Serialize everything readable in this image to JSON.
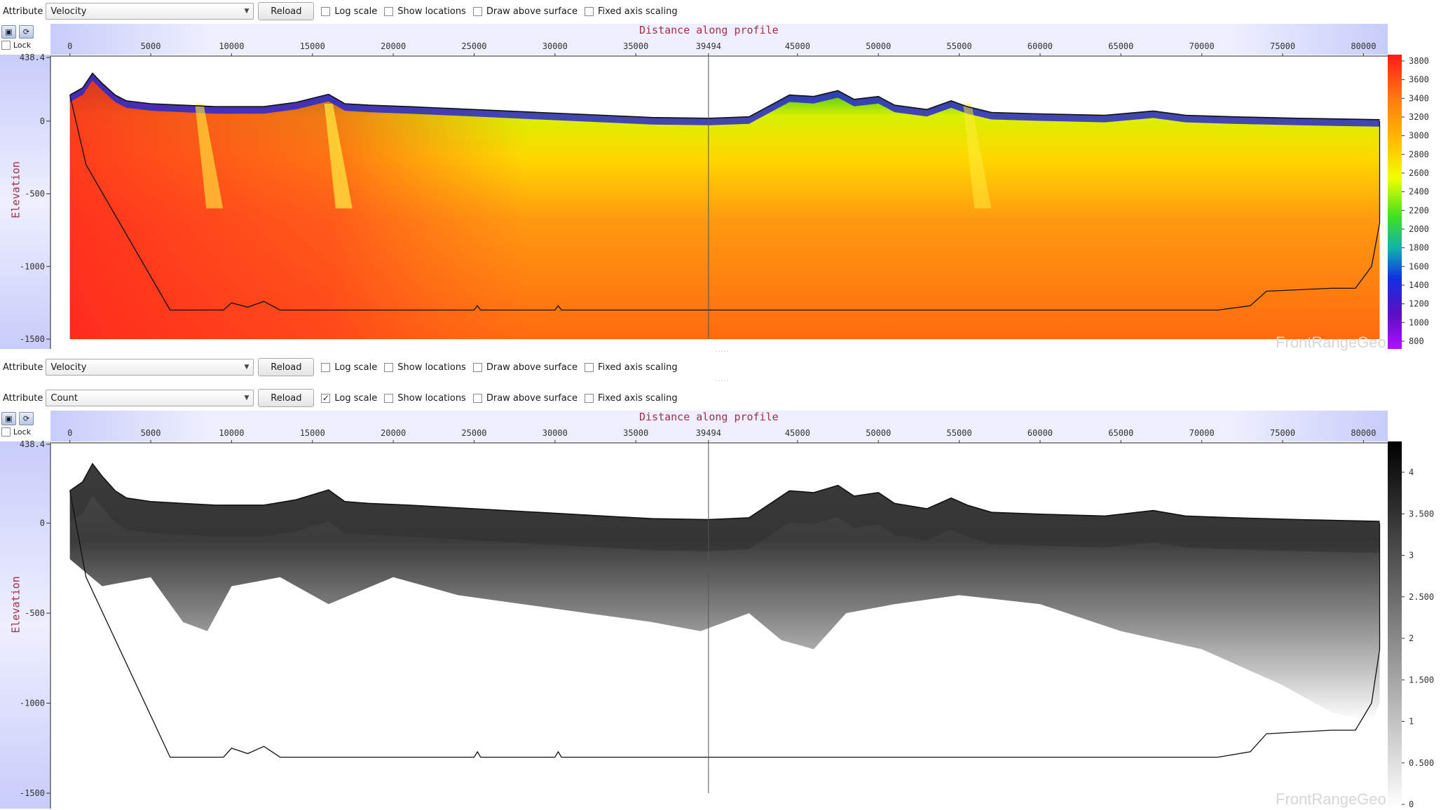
{
  "panels": [
    {
      "id": "top",
      "attribute_label": "Attribute",
      "attribute_value": "Velocity",
      "reload_label": "Reload",
      "log_scale": {
        "label": "Log scale",
        "checked": false
      },
      "show_locations": {
        "label": "Show locations",
        "checked": false
      },
      "draw_above_surface": {
        "label": "Draw above surface",
        "checked": false
      },
      "fixed_axis_scaling": {
        "label": "Fixed axis scaling",
        "checked": false
      },
      "lock_label": "Lock",
      "x_axis_title": "Distance along profile",
      "y_axis_title": "Elevation",
      "x_ticks": [
        "0",
        "5000",
        "10000",
        "15000",
        "20000",
        "25000",
        "30000",
        "35000",
        "39494",
        "45000",
        "50000",
        "55000",
        "60000",
        "65000",
        "70000",
        "75000",
        "80000"
      ],
      "y_ticks": [
        "438.4",
        "0",
        "-500",
        "-1000",
        "-1500"
      ],
      "colorbar_ticks": [
        "3800",
        "3600",
        "3400",
        "3200",
        "3000",
        "2800",
        "2600",
        "2400",
        "2200",
        "2000",
        "1800",
        "1600",
        "1400",
        "1200",
        "1000",
        "800"
      ],
      "watermark": "FrontRangeGeo",
      "colormap": "rainbow"
    },
    {
      "id": "middle",
      "attribute_label": "Attribute",
      "attribute_value": "Velocity",
      "reload_label": "Reload",
      "log_scale": {
        "label": "Log scale",
        "checked": false
      },
      "show_locations": {
        "label": "Show locations",
        "checked": false
      },
      "draw_above_surface": {
        "label": "Draw above surface",
        "checked": false
      },
      "fixed_axis_scaling": {
        "label": "Fixed axis scaling",
        "checked": false
      }
    },
    {
      "id": "bottom",
      "attribute_label": "Attribute",
      "attribute_value": "Count",
      "reload_label": "Reload",
      "log_scale": {
        "label": "Log scale",
        "checked": true
      },
      "show_locations": {
        "label": "Show locations",
        "checked": false
      },
      "draw_above_surface": {
        "label": "Draw above surface",
        "checked": false
      },
      "fixed_axis_scaling": {
        "label": "Fixed axis scaling",
        "checked": false
      },
      "lock_label": "Lock",
      "x_axis_title": "Distance along profile",
      "y_axis_title": "Elevation",
      "x_ticks": [
        "0",
        "5000",
        "10000",
        "15000",
        "20000",
        "25000",
        "30000",
        "35000",
        "39494",
        "45000",
        "50000",
        "55000",
        "60000",
        "65000",
        "70000",
        "75000",
        "80000"
      ],
      "y_ticks": [
        "438.4",
        "0",
        "-500",
        "-1000",
        "-1500"
      ],
      "colorbar_ticks": [
        "4",
        "3.500",
        "3",
        "2.500",
        "2",
        "1.500",
        "1",
        "0.500",
        "0"
      ],
      "watermark": "FrontRangeGeo",
      "colormap": "grayscale"
    }
  ],
  "cursor_x_value": 39494,
  "x_range": [
    -1200,
    81500
  ],
  "y_range": [
    -1500,
    438.4
  ],
  "colors": {
    "axis_title": "#a0304a",
    "header_band": "#d8dcf8",
    "cursor": "#555555"
  }
}
